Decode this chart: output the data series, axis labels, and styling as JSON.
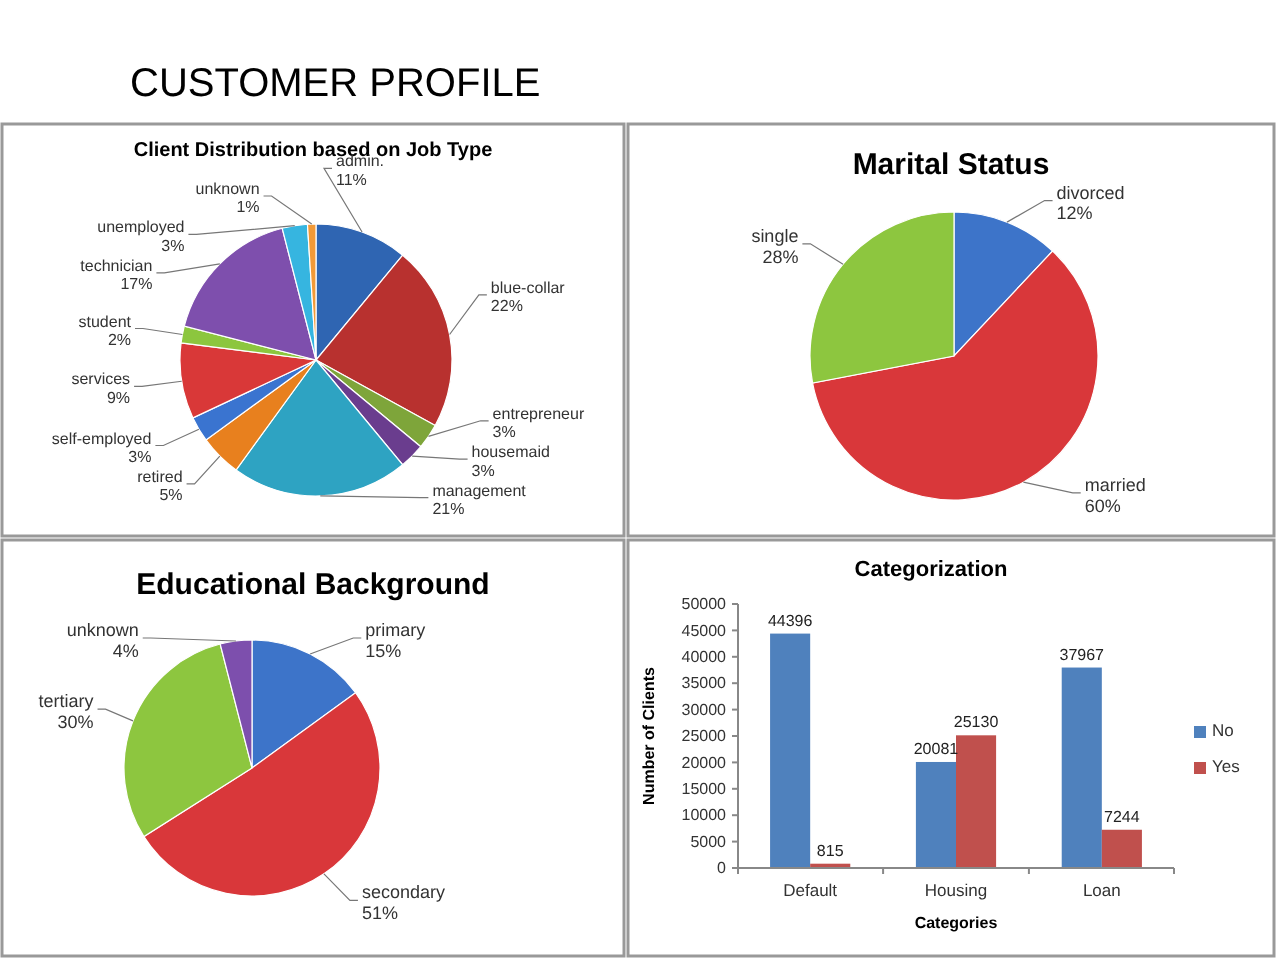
{
  "chart_data": [
    {
      "type": "other",
      "title": "CUSTOMER PROFILE"
    },
    {
      "type": "pie",
      "title": "Client Distribution based on Job Type",
      "categories": [
        "admin.",
        "blue-collar",
        "entrepreneur",
        "housemaid",
        "management",
        "retired",
        "self-employed",
        "services",
        "student",
        "technician",
        "unemployed",
        "unknown"
      ],
      "values": [
        11,
        22,
        3,
        3,
        21,
        5,
        3,
        9,
        2,
        17,
        3,
        1
      ],
      "colors": [
        "#2f65b2",
        "#b8312f",
        "#7ea53a",
        "#6a3d8e",
        "#2ea3c2",
        "#e8801e",
        "#3a74d0",
        "#d93838",
        "#8cc63e",
        "#7e4fad",
        "#36b5e0",
        "#f29a38"
      ],
      "value_labels": [
        "11%",
        "22%",
        "3%",
        "3%",
        "21%",
        "5%",
        "3%",
        "9%",
        "2%",
        "17%",
        "3%",
        "1%"
      ]
    },
    {
      "type": "pie",
      "title": "Marital Status",
      "categories": [
        "divorced",
        "married",
        "single"
      ],
      "values": [
        12,
        60,
        28
      ],
      "colors": [
        "#3d74c9",
        "#d9373a",
        "#8dc63f"
      ],
      "value_labels": [
        "12%",
        "60%",
        "28%"
      ]
    },
    {
      "type": "pie",
      "title": "Educational Background",
      "categories": [
        "primary",
        "secondary",
        "tertiary",
        "unknown"
      ],
      "values": [
        15,
        51,
        30,
        4
      ],
      "colors": [
        "#3d74c9",
        "#d9373a",
        "#8dc63f",
        "#7d4fad"
      ],
      "value_labels": [
        "15%",
        "51%",
        "30%",
        "4%"
      ]
    },
    {
      "type": "bar",
      "title": "Categorization",
      "categories": [
        "Default",
        "Housing",
        "Loan"
      ],
      "series": [
        {
          "name": "No",
          "color": "#4f81bd",
          "values": [
            44396,
            20081,
            37967
          ]
        },
        {
          "name": "Yes",
          "color": "#c0504d",
          "values": [
            815,
            25130,
            7244
          ]
        }
      ],
      "ylim": [
        0,
        50000
      ],
      "yticks": [
        0,
        5000,
        10000,
        15000,
        20000,
        25000,
        30000,
        35000,
        40000,
        45000,
        50000
      ],
      "xlabel": "Categories",
      "ylabel": "Number of Clients",
      "data_labels": true,
      "legend": "right"
    }
  ]
}
